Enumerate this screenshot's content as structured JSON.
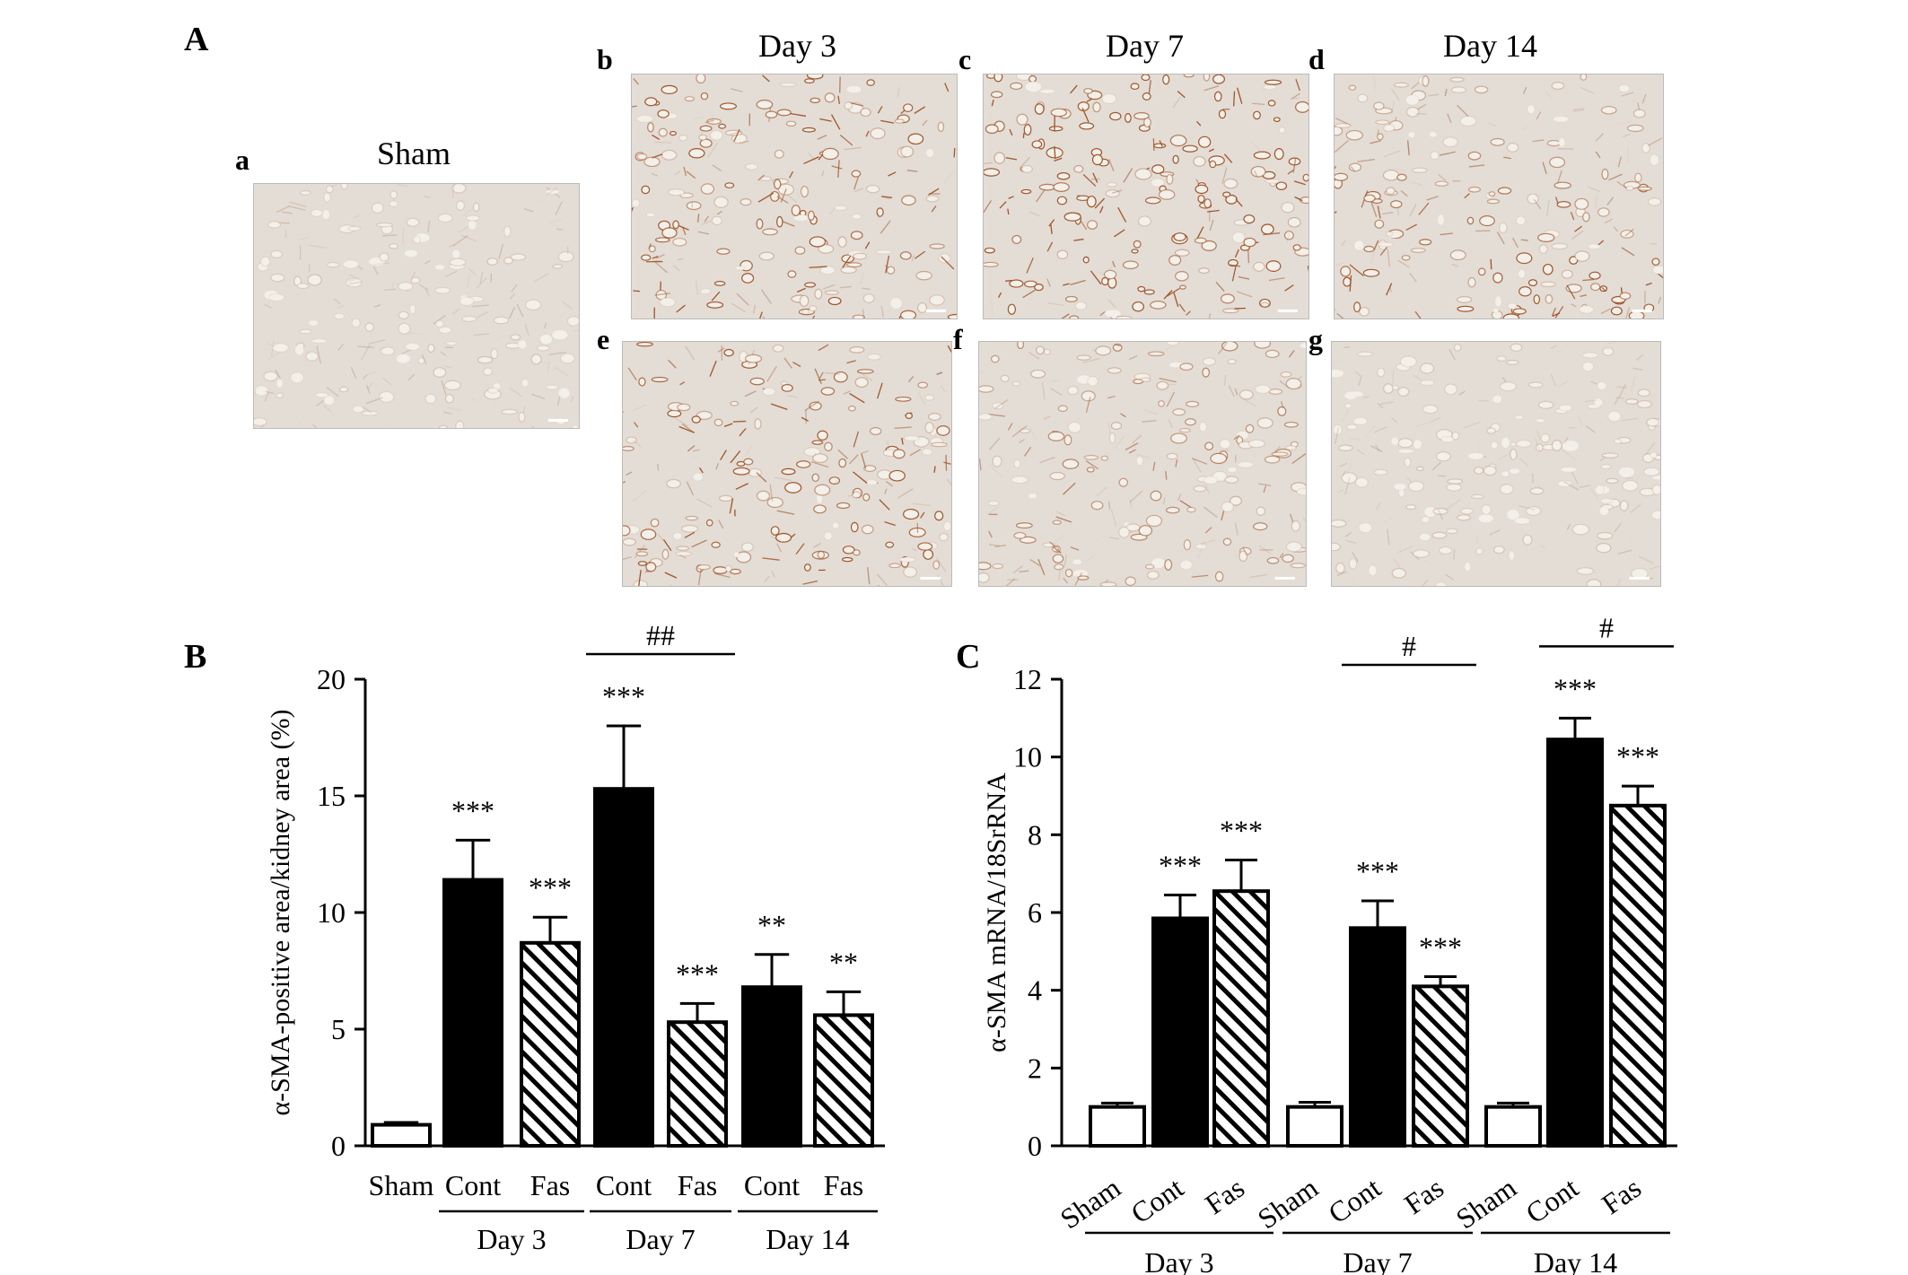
{
  "panels": {
    "A": {
      "label": "A",
      "columns": [
        "Sham",
        "Day 3",
        "Day 7",
        "Day 14"
      ],
      "tiles": [
        {
          "letter": "a",
          "stain": "light"
        },
        {
          "letter": "b",
          "stain": "medium"
        },
        {
          "letter": "c",
          "stain": "heavy"
        },
        {
          "letter": "d",
          "stain": "mixed"
        },
        {
          "letter": "e",
          "stain": "medium"
        },
        {
          "letter": "f",
          "stain": "light-medium"
        },
        {
          "letter": "g",
          "stain": "light"
        }
      ]
    },
    "B": {
      "label": "B"
    },
    "C": {
      "label": "C"
    }
  },
  "colors": {
    "solid": "#000000",
    "outline": "#000000",
    "background": "#ffffff",
    "stain": "#a0562b",
    "tissue": "#e3ddd6"
  },
  "chart_data": [
    {
      "id": "B",
      "type": "bar",
      "ylabel": "α-SMA-positive area/kidney area (%)",
      "ylim": [
        0,
        20
      ],
      "yticks": [
        0,
        5,
        10,
        15,
        20
      ],
      "categories": [
        "Sham",
        "Cont",
        "Fas",
        "Cont",
        "Fas",
        "Cont",
        "Fas"
      ],
      "groups": [
        {
          "label": "Day 3",
          "members": [
            1,
            2
          ]
        },
        {
          "label": "Day 7",
          "members": [
            3,
            4
          ]
        },
        {
          "label": "Day 14",
          "members": [
            5,
            6
          ]
        }
      ],
      "bars": [
        {
          "value": 0.9,
          "err": 0.1,
          "fill": "open",
          "sig": ""
        },
        {
          "value": 11.4,
          "err": 1.7,
          "fill": "solid",
          "sig": "***"
        },
        {
          "value": 8.7,
          "err": 1.1,
          "fill": "hatched",
          "sig": "***"
        },
        {
          "value": 15.3,
          "err": 2.7,
          "fill": "solid",
          "sig": "***"
        },
        {
          "value": 5.3,
          "err": 0.8,
          "fill": "hatched",
          "sig": "***"
        },
        {
          "value": 6.8,
          "err": 1.4,
          "fill": "solid",
          "sig": "**"
        },
        {
          "value": 5.6,
          "err": 1.0,
          "fill": "hatched",
          "sig": "**"
        }
      ],
      "comparisons": [
        {
          "from": 3,
          "to": 4,
          "label": "##"
        }
      ]
    },
    {
      "id": "C",
      "type": "bar",
      "ylabel": "α-SMA mRNA/18SrRNA",
      "ylim": [
        0,
        12
      ],
      "yticks": [
        0,
        2,
        4,
        6,
        8,
        10,
        12
      ],
      "categories": [
        "Sham",
        "Cont",
        "Fas",
        "Sham",
        "Cont",
        "Fas",
        "Sham",
        "Cont",
        "Fas"
      ],
      "groups": [
        {
          "label": "Day 3",
          "members": [
            0,
            2
          ]
        },
        {
          "label": "Day 7",
          "members": [
            3,
            5
          ]
        },
        {
          "label": "Day 14",
          "members": [
            6,
            8
          ]
        }
      ],
      "bars": [
        {
          "value": 1.0,
          "err": 0.1,
          "fill": "open",
          "sig": ""
        },
        {
          "value": 5.85,
          "err": 0.6,
          "fill": "solid",
          "sig": "***"
        },
        {
          "value": 6.55,
          "err": 0.8,
          "fill": "hatched",
          "sig": "***"
        },
        {
          "value": 1.0,
          "err": 0.12,
          "fill": "open",
          "sig": ""
        },
        {
          "value": 5.6,
          "err": 0.7,
          "fill": "solid",
          "sig": "***"
        },
        {
          "value": 4.1,
          "err": 0.25,
          "fill": "hatched",
          "sig": "***"
        },
        {
          "value": 1.0,
          "err": 0.1,
          "fill": "open",
          "sig": ""
        },
        {
          "value": 10.45,
          "err": 0.55,
          "fill": "solid",
          "sig": "***"
        },
        {
          "value": 8.75,
          "err": 0.5,
          "fill": "hatched",
          "sig": "***"
        }
      ],
      "comparisons": [
        {
          "from": 4,
          "to": 5,
          "label": "#"
        },
        {
          "from": 7,
          "to": 8,
          "label": "#"
        }
      ]
    }
  ]
}
